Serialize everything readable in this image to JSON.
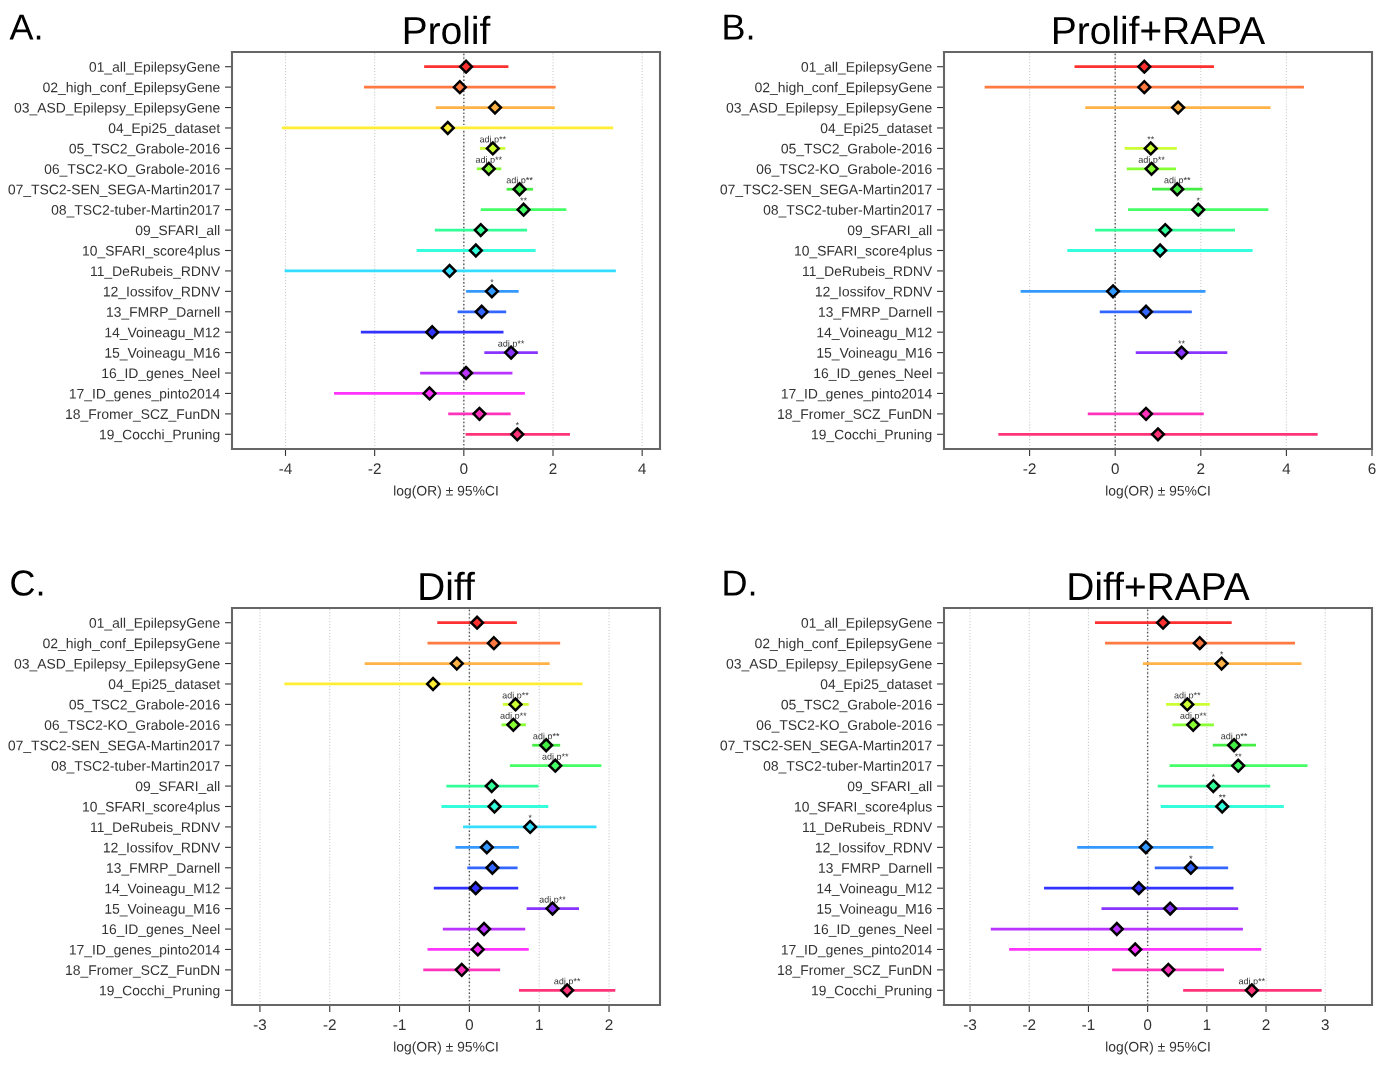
{
  "chart_data": [
    {
      "type": "scatter",
      "orientation": "horizontal",
      "title": "Prolif",
      "xlabel": "log(OR) ± 95%CI",
      "marker": "diamond",
      "grid": "x",
      "categories": [
        "01_all_EpilepsyGene",
        "02_high_conf_EpilepsyGene",
        "03_ASD_Epilepsy_EpilepsyGene",
        "04_Epi25_dataset",
        "05_TSC2_Grabole-2016",
        "06_TSC2-KO_Grabole-2016",
        "07_TSC2-SEN_SEGA-Martin2017",
        "08_TSC2-tuber-Martin2017",
        "09_SFARI_all",
        "10_SFARI_score4plus",
        "11_DeRubeis_RDNV",
        "12_Iossifov_RDNV",
        "13_FMRP_Darnell",
        "14_Voineagu_M12",
        "15_Voineagu_M16",
        "16_ID_genes_Neel",
        "17_ID_genes_pinto2014",
        "18_Fromer_SCZ_FunDN",
        "19_Cocchi_Pruning"
      ],
      "values": [
        0.05,
        -0.09,
        0.7,
        -0.36,
        0.65,
        0.56,
        1.25,
        1.34,
        0.38,
        0.27,
        -0.32,
        0.63,
        0.4,
        -0.71,
        1.06,
        0.05,
        -0.77,
        0.35,
        1.2
      ],
      "errors": [
        [
          -0.89,
          1.0
        ],
        [
          -2.24,
          2.06
        ],
        [
          -0.63,
          2.04
        ],
        [
          -4.08,
          3.35
        ],
        [
          0.36,
          0.93
        ],
        [
          0.29,
          0.84
        ],
        [
          0.96,
          1.55
        ],
        [
          0.38,
          2.3
        ],
        [
          -0.65,
          1.42
        ],
        [
          -1.06,
          1.61
        ],
        [
          -4.02,
          3.41
        ],
        [
          0.05,
          1.23
        ],
        [
          -0.14,
          0.95
        ],
        [
          -2.31,
          0.89
        ],
        [
          0.46,
          1.66
        ],
        [
          -0.98,
          1.09
        ],
        [
          -2.91,
          1.37
        ],
        [
          -0.35,
          1.05
        ],
        [
          0.04,
          2.38
        ]
      ],
      "colors": [
        "#ff3030",
        "#ff7a40",
        "#ffb347",
        "#ffee33",
        "#ccff33",
        "#88ff33",
        "#44ee44",
        "#44ff66",
        "#33ff99",
        "#33ffdd",
        "#33ddff",
        "#3399ff",
        "#3366ff",
        "#3333ff",
        "#8833ff",
        "#bb33ff",
        "#ff33ff",
        "#ff33bb",
        "#ff3377"
      ],
      "xlim": [
        -5.2,
        4.4
      ],
      "xticks": [
        -4,
        -2,
        0,
        2,
        4
      ],
      "ref_lines": [
        {
          "axis": "x",
          "value": 0,
          "line_style": "dotted",
          "color": "#555555"
        }
      ],
      "annotations": [
        "A.",
        {
          "text": "adj.p**",
          "x": 0.65,
          "y": "05_TSC2_Grabole-2016"
        },
        {
          "text": "adj.p**",
          "x": 0.56,
          "y": "06_TSC2-KO_Grabole-2016"
        },
        {
          "text": "adj.p**",
          "x": 1.25,
          "y": "07_TSC2-SEN_SEGA-Martin2017"
        },
        {
          "text": "**",
          "x": 1.34,
          "y": "08_TSC2-tuber-Martin2017"
        },
        {
          "text": "*",
          "x": 0.63,
          "y": "12_Iossifov_RDNV"
        },
        {
          "text": "adj.p**",
          "x": 1.06,
          "y": "15_Voineagu_M16"
        },
        {
          "text": "*",
          "x": 1.2,
          "y": "19_Cocchi_Pruning"
        }
      ]
    },
    {
      "type": "scatter",
      "orientation": "horizontal",
      "title": "Prolif+RAPA",
      "xlabel": "log(OR) ± 95%CI",
      "marker": "diamond",
      "grid": "x",
      "categories": [
        "01_all_EpilepsyGene",
        "02_high_conf_EpilepsyGene",
        "03_ASD_Epilepsy_EpilepsyGene",
        "04_Epi25_dataset",
        "05_TSC2_Grabole-2016",
        "06_TSC2-KO_Grabole-2016",
        "07_TSC2-SEN_SEGA-Martin2017",
        "08_TSC2-tuber-Martin2017",
        "09_SFARI_all",
        "10_SFARI_score4plus",
        "11_DeRubeis_RDNV",
        "12_Iossifov_RDNV",
        "13_FMRP_Darnell",
        "14_Voineagu_M12",
        "15_Voineagu_M16",
        "16_ID_genes_Neel",
        "17_ID_genes_pinto2014",
        "18_Fromer_SCZ_FunDN",
        "19_Cocchi_Pruning"
      ],
      "values": [
        0.68,
        0.68,
        1.47,
        null,
        0.83,
        0.85,
        1.45,
        1.94,
        1.17,
        1.05,
        null,
        -0.05,
        0.72,
        null,
        1.55,
        null,
        null,
        0.72,
        1.0
      ],
      "errors": [
        [
          -0.95,
          2.31
        ],
        [
          -3.05,
          4.41
        ],
        [
          -0.7,
          3.63
        ],
        null,
        [
          0.22,
          1.44
        ],
        [
          0.27,
          1.42
        ],
        [
          0.86,
          2.04
        ],
        [
          0.3,
          3.58
        ],
        [
          -0.47,
          2.8
        ],
        [
          -1.12,
          3.21
        ],
        null,
        [
          -2.21,
          2.11
        ],
        [
          -0.36,
          1.79
        ],
        null,
        [
          0.48,
          2.62
        ],
        null,
        null,
        [
          -0.64,
          2.07
        ],
        [
          -2.73,
          4.73
        ]
      ],
      "colors": [
        "#ff3030",
        "#ff7a40",
        "#ffb347",
        "#ffee33",
        "#ccff33",
        "#88ff33",
        "#44ee44",
        "#44ff66",
        "#33ff99",
        "#33ffdd",
        "#33ddff",
        "#3399ff",
        "#3366ff",
        "#3333ff",
        "#8833ff",
        "#bb33ff",
        "#ff33ff",
        "#ff33bb",
        "#ff3377"
      ],
      "xlim": [
        -4,
        6
      ],
      "xticks": [
        -2,
        0,
        2,
        4,
        6
      ],
      "ref_lines": [
        {
          "axis": "x",
          "value": 0,
          "line_style": "dotted",
          "color": "#555555"
        }
      ],
      "annotations": [
        "B.",
        {
          "text": "**",
          "x": 0.83,
          "y": "05_TSC2_Grabole-2016"
        },
        {
          "text": "adj.p**",
          "x": 0.85,
          "y": "06_TSC2-KO_Grabole-2016"
        },
        {
          "text": "adj.p**",
          "x": 1.45,
          "y": "07_TSC2-SEN_SEGA-Martin2017"
        },
        {
          "text": "*",
          "x": 1.94,
          "y": "08_TSC2-tuber-Martin2017"
        },
        {
          "text": "**",
          "x": 1.55,
          "y": "15_Voineagu_M16"
        }
      ]
    },
    {
      "type": "scatter",
      "orientation": "horizontal",
      "title": "Diff",
      "xlabel": "log(OR) ± 95%CI",
      "marker": "diamond",
      "grid": "x",
      "categories": [
        "01_all_EpilepsyGene",
        "02_high_conf_EpilepsyGene",
        "03_ASD_Epilepsy_EpilepsyGene",
        "04_Epi25_dataset",
        "05_TSC2_Grabole-2016",
        "06_TSC2-KO_Grabole-2016",
        "07_TSC2-SEN_SEGA-Martin2017",
        "08_TSC2-tuber-Martin2017",
        "09_SFARI_all",
        "10_SFARI_score4plus",
        "11_DeRubeis_RDNV",
        "12_Iossifov_RDNV",
        "13_FMRP_Darnell",
        "14_Voineagu_M12",
        "15_Voineagu_M16",
        "16_ID_genes_Neel",
        "17_ID_genes_pinto2014",
        "18_Fromer_SCZ_FunDN",
        "19_Cocchi_Pruning"
      ],
      "values": [
        0.11,
        0.35,
        -0.18,
        -0.52,
        0.66,
        0.63,
        1.1,
        1.23,
        0.32,
        0.36,
        0.87,
        0.25,
        0.33,
        0.09,
        1.19,
        0.21,
        0.12,
        -0.11,
        1.4
      ],
      "errors": [
        [
          -0.46,
          0.68
        ],
        [
          -0.6,
          1.3
        ],
        [
          -1.5,
          1.15
        ],
        [
          -2.65,
          1.62
        ],
        [
          0.48,
          0.85
        ],
        [
          0.46,
          0.81
        ],
        [
          0.9,
          1.3
        ],
        [
          0.58,
          1.89
        ],
        [
          -0.33,
          0.99
        ],
        [
          -0.4,
          1.13
        ],
        [
          -0.09,
          1.82
        ],
        [
          -0.2,
          0.71
        ],
        [
          -0.03,
          0.69
        ],
        [
          -0.51,
          0.7
        ],
        [
          0.82,
          1.57
        ],
        [
          -0.38,
          0.8
        ],
        [
          -0.6,
          0.85
        ],
        [
          -0.66,
          0.44
        ],
        [
          0.71,
          2.09
        ]
      ],
      "colors": [
        "#ff3030",
        "#ff7a40",
        "#ffb347",
        "#ffee33",
        "#ccff33",
        "#88ff33",
        "#44ee44",
        "#44ff66",
        "#33ff99",
        "#33ffdd",
        "#33ddff",
        "#3399ff",
        "#3366ff",
        "#3333ff",
        "#8833ff",
        "#bb33ff",
        "#ff33ff",
        "#ff33bb",
        "#ff3377"
      ],
      "xlim": [
        -3.4,
        2.73
      ],
      "xticks": [
        -3,
        -2,
        -1,
        0,
        1,
        2
      ],
      "ref_lines": [
        {
          "axis": "x",
          "value": 0,
          "line_style": "dotted",
          "color": "#555555"
        }
      ],
      "annotations": [
        "C.",
        {
          "text": "adj.p**",
          "x": 0.66,
          "y": "05_TSC2_Grabole-2016"
        },
        {
          "text": "adj.p**",
          "x": 0.63,
          "y": "06_TSC2-KO_Grabole-2016"
        },
        {
          "text": "adj.p**",
          "x": 1.1,
          "y": "07_TSC2-SEN_SEGA-Martin2017"
        },
        {
          "text": "adj.p**",
          "x": 1.23,
          "y": "08_TSC2-tuber-Martin2017"
        },
        {
          "text": "*",
          "x": 0.87,
          "y": "11_DeRubeis_RDNV"
        },
        {
          "text": "adj.p**",
          "x": 1.19,
          "y": "15_Voineagu_M16"
        },
        {
          "text": "adj.p**",
          "x": 1.4,
          "y": "19_Cocchi_Pruning"
        }
      ]
    },
    {
      "type": "scatter",
      "orientation": "horizontal",
      "title": "Diff+RAPA",
      "xlabel": "log(OR) ± 95%CI",
      "marker": "diamond",
      "grid": "x",
      "categories": [
        "01_all_EpilepsyGene",
        "02_high_conf_EpilepsyGene",
        "03_ASD_Epilepsy_EpilepsyGene",
        "04_Epi25_dataset",
        "05_TSC2_Grabole-2016",
        "06_TSC2-KO_Grabole-2016",
        "07_TSC2-SEN_SEGA-Martin2017",
        "08_TSC2-tuber-Martin2017",
        "09_SFARI_all",
        "10_SFARI_score4plus",
        "11_DeRubeis_RDNV",
        "12_Iossifov_RDNV",
        "13_FMRP_Darnell",
        "14_Voineagu_M12",
        "15_Voineagu_M16",
        "16_ID_genes_Neel",
        "17_ID_genes_pinto2014",
        "18_Fromer_SCZ_FunDN",
        "19_Cocchi_Pruning"
      ],
      "values": [
        0.26,
        0.88,
        1.25,
        null,
        0.67,
        0.77,
        1.46,
        1.53,
        1.11,
        1.26,
        null,
        -0.03,
        0.73,
        -0.15,
        0.38,
        -0.52,
        -0.21,
        0.35,
        1.76
      ],
      "errors": [
        [
          -0.89,
          1.42
        ],
        [
          -0.72,
          2.49
        ],
        [
          -0.08,
          2.6
        ],
        null,
        [
          0.31,
          1.05
        ],
        [
          0.42,
          1.12
        ],
        [
          1.1,
          1.83
        ],
        [
          0.37,
          2.7
        ],
        [
          0.17,
          2.07
        ],
        [
          0.22,
          2.3
        ],
        null,
        [
          -1.19,
          1.11
        ],
        [
          0.12,
          1.36
        ],
        [
          -1.75,
          1.45
        ],
        [
          -0.78,
          1.53
        ],
        [
          -2.65,
          1.61
        ],
        [
          -2.34,
          1.92
        ],
        [
          -0.6,
          1.29
        ],
        [
          0.6,
          2.94
        ]
      ],
      "colors": [
        "#ff3030",
        "#ff7a40",
        "#ffb347",
        "#ffee33",
        "#ccff33",
        "#88ff33",
        "#44ee44",
        "#44ff66",
        "#33ff99",
        "#33ffdd",
        "#33ddff",
        "#3399ff",
        "#3366ff",
        "#3333ff",
        "#8833ff",
        "#bb33ff",
        "#ff33ff",
        "#ff33bb",
        "#ff3377"
      ],
      "xlim": [
        -3.44,
        3.79
      ],
      "xticks": [
        -3,
        -2,
        -1,
        0,
        1,
        2,
        3
      ],
      "ref_lines": [
        {
          "axis": "x",
          "value": 0,
          "line_style": "dotted",
          "color": "#555555"
        }
      ],
      "annotations": [
        "D.",
        {
          "text": "*",
          "x": 1.25,
          "y": "03_ASD_Epilepsy_EpilepsyGene"
        },
        {
          "text": "adj.p**",
          "x": 0.67,
          "y": "05_TSC2_Grabole-2016"
        },
        {
          "text": "adj.p**",
          "x": 0.77,
          "y": "06_TSC2-KO_Grabole-2016"
        },
        {
          "text": "adj.p**",
          "x": 1.46,
          "y": "07_TSC2-SEN_SEGA-Martin2017"
        },
        {
          "text": "**",
          "x": 1.53,
          "y": "08_TSC2-tuber-Martin2017"
        },
        {
          "text": "*",
          "x": 1.11,
          "y": "09_SFARI_all"
        },
        {
          "text": "**",
          "x": 1.26,
          "y": "10_SFARI_score4plus"
        },
        {
          "text": "*",
          "x": 0.73,
          "y": "13_FMRP_Darnell"
        },
        {
          "text": "adj.p**",
          "x": 1.76,
          "y": "19_Cocchi_Pruning"
        }
      ]
    }
  ]
}
